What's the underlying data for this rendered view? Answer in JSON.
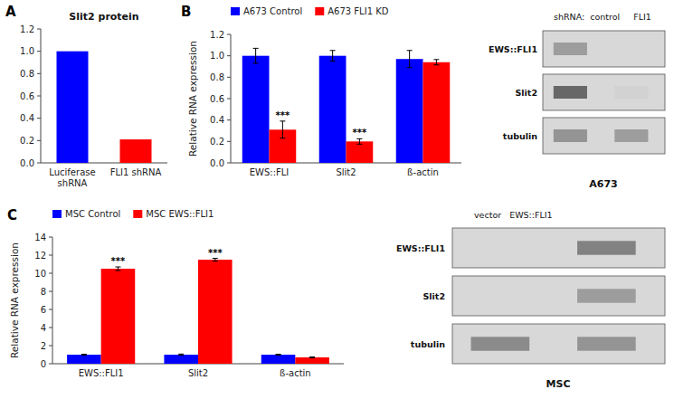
{
  "chart_data": [
    {
      "type": "bar",
      "title": "Slit2 protein",
      "annotations": [
        "A"
      ],
      "categories": [
        "Luciferase\nshRNA",
        "FLI1 shRNA"
      ],
      "values": [
        1.0,
        0.21
      ],
      "colors": [
        "#0000FF",
        "#FF0000"
      ],
      "ylim": [
        0,
        1.2
      ],
      "yticks": [
        {
          "value": 0,
          "label": "0.0"
        },
        0.2,
        0.4,
        0.6,
        0.8,
        {
          "value": 1.0,
          "label": "1.0"
        },
        1.2
      ]
    },
    {
      "type": "bar",
      "annotations": [
        "B"
      ],
      "ylabel": "Relative RNA expression",
      "legend": "top-left",
      "categories": [
        "EWS::FLI",
        "Slit2",
        "ß-actin"
      ],
      "series": [
        {
          "name": "A673 Control",
          "color": "#0000FF",
          "values": [
            1.0,
            1.0,
            0.97
          ],
          "errors": [
            0.07,
            0.05,
            0.08
          ]
        },
        {
          "name": "A673 FLI1 KD",
          "color": "#FF0000",
          "values": [
            0.31,
            0.2,
            0.94
          ],
          "errors": [
            0.08,
            0.025,
            0.025
          ],
          "annotations": [
            "***",
            "***",
            null
          ]
        }
      ],
      "ylim": [
        0,
        1.2
      ],
      "yticks": [
        {
          "value": 0,
          "label": "0.0"
        },
        0.2,
        0.4,
        0.6,
        0.8,
        {
          "value": 1.0,
          "label": "1.0"
        },
        1.2
      ]
    },
    {
      "type": "blot",
      "title": "A673",
      "subtitle": "shRNA:  control     FLI1",
      "color": "#d8d8d8",
      "categories": [
        "EWS::FLI1",
        "Slit2",
        "tubulin"
      ],
      "cells": [
        [
          0.55,
          0.0
        ],
        [
          0.85,
          0.25
        ],
        [
          0.6,
          0.55
        ]
      ]
    },
    {
      "type": "bar",
      "annotations": [
        "C"
      ],
      "ylabel": "Relative RNA expression",
      "legend": "top-left",
      "categories": [
        "EWS::FLI1",
        "Slit2",
        "ß-actin"
      ],
      "series": [
        {
          "name": "MSC Control",
          "color": "#0000FF",
          "values": [
            1.0,
            1.0,
            1.0
          ],
          "errors": [
            0.05,
            0.07,
            0.05
          ]
        },
        {
          "name": "MSC EWS::FLI1",
          "color": "#FF0000",
          "values": [
            10.5,
            11.5,
            0.7
          ],
          "errors": [
            0.2,
            0.15,
            0.05
          ],
          "annotations": [
            "***",
            "***",
            null
          ]
        }
      ],
      "ylim": [
        0,
        14
      ],
      "yticks": [
        0,
        2,
        4,
        6,
        8,
        10,
        12,
        14
      ]
    },
    {
      "type": "blot",
      "title": "MSC",
      "subtitle": "vector   EWS::FLI1",
      "color": "#d8d8d8",
      "categories": [
        "EWS::FLI1",
        "Slit2",
        "tubulin"
      ],
      "cells": [
        [
          0.0,
          0.7
        ],
        [
          0.0,
          0.55
        ],
        [
          0.65,
          0.6
        ]
      ]
    }
  ]
}
